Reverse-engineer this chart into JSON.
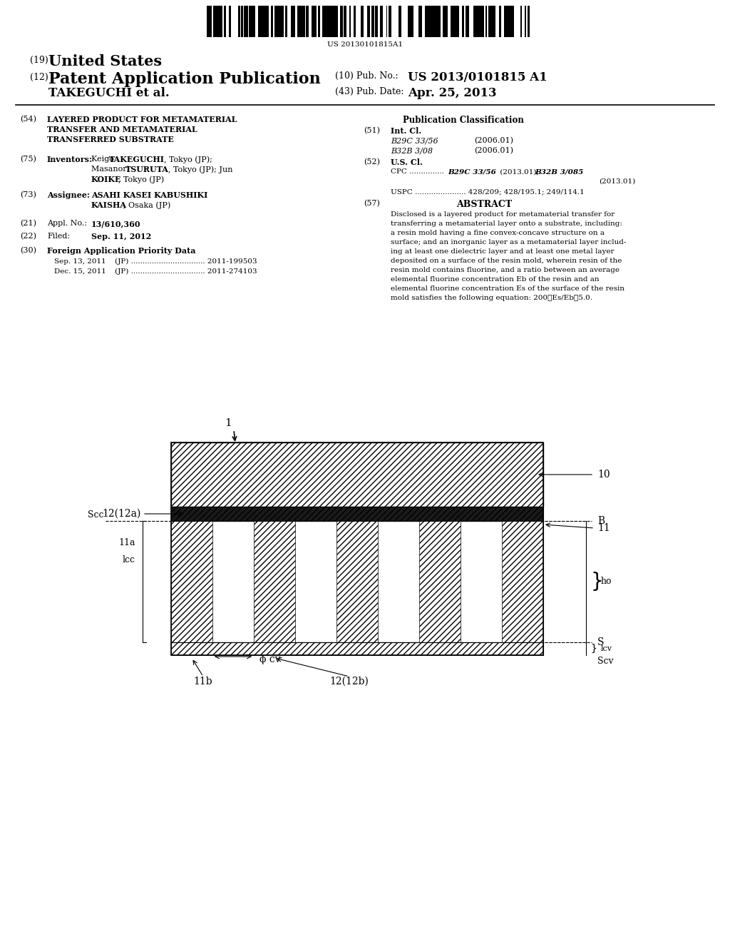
{
  "page_width": 10.24,
  "page_height": 13.2,
  "bg_color": "#ffffff",
  "barcode_text": "US 20130101815A1",
  "diagram_label_1": "1",
  "diagram_label_10": "10",
  "diagram_label_11": "11",
  "diagram_label_12a": "12(12a)",
  "diagram_label_11a": "11a",
  "diagram_label_11b": "11b",
  "diagram_label_12b": "12(12b)",
  "diagram_label_B": "B",
  "diagram_label_S": "S",
  "diagram_label_Scc": "Scc",
  "diagram_label_Scv": "Scv",
  "diagram_label_lcc": "lcc",
  "diagram_label_lcv": "lcv",
  "diagram_label_ho": "ho",
  "diagram_label_phi_cv": "ϕ cv"
}
